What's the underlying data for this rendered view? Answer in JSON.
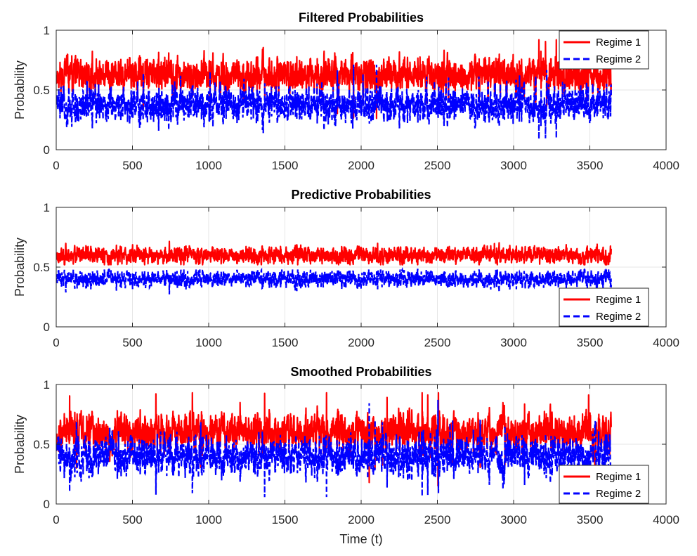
{
  "chart_data": [
    {
      "type": "line",
      "title": "Filtered Probabilities",
      "xlabel": "",
      "ylabel": "Probability",
      "xlim": [
        0,
        4000
      ],
      "ylim": [
        0,
        1
      ],
      "xticks": [
        0,
        500,
        1000,
        1500,
        2000,
        2500,
        3000,
        3500,
        4000
      ],
      "xtick_labels": [
        "0",
        "500",
        "1000",
        "1500",
        "2000",
        "2500",
        "3000",
        "3500",
        "4000"
      ],
      "yticks": [
        0,
        0.5,
        1
      ],
      "ytick_labels": [
        "0",
        "0.5",
        "1"
      ],
      "grid": true,
      "legend": "top-right",
      "n_points": 3640,
      "series": [
        {
          "name": "Regime 1",
          "color": "#ff0000",
          "style": "solid",
          "mean": 0.62,
          "range": [
            0.2,
            0.92
          ]
        },
        {
          "name": "Regime 2",
          "color": "#0000ff",
          "style": "dashed",
          "mean": 0.38,
          "range": [
            0.08,
            0.8
          ]
        }
      ]
    },
    {
      "type": "line",
      "title": "Predictive Probabilities",
      "xlabel": "",
      "ylabel": "Probability",
      "xlim": [
        0,
        4000
      ],
      "ylim": [
        0,
        1
      ],
      "xticks": [
        0,
        500,
        1000,
        1500,
        2000,
        2500,
        3000,
        3500,
        4000
      ],
      "xtick_labels": [
        "0",
        "500",
        "1000",
        "1500",
        "2000",
        "2500",
        "3000",
        "3500",
        "4000"
      ],
      "yticks": [
        0,
        0.5,
        1
      ],
      "ytick_labels": [
        "0",
        "0.5",
        "1"
      ],
      "grid": true,
      "legend": "bottom-right",
      "n_points": 3640,
      "series": [
        {
          "name": "Regime 1",
          "color": "#ff0000",
          "style": "solid",
          "mean": 0.6,
          "range": [
            0.52,
            0.76
          ]
        },
        {
          "name": "Regime 2",
          "color": "#0000ff",
          "style": "dashed",
          "mean": 0.4,
          "range": [
            0.26,
            0.48
          ]
        }
      ]
    },
    {
      "type": "line",
      "title": "Smoothed Probabilities",
      "xlabel": "Time (t)",
      "ylabel": "Probability",
      "xlim": [
        0,
        4000
      ],
      "ylim": [
        0,
        1
      ],
      "xticks": [
        0,
        500,
        1000,
        1500,
        2000,
        2500,
        3000,
        3500,
        4000
      ],
      "xtick_labels": [
        "0",
        "500",
        "1000",
        "1500",
        "2000",
        "2500",
        "3000",
        "3500",
        "4000"
      ],
      "yticks": [
        0,
        0.5,
        1
      ],
      "ytick_labels": [
        "0",
        "0.5",
        "1"
      ],
      "grid": true,
      "legend": "bottom-right",
      "n_points": 3640,
      "series": [
        {
          "name": "Regime 1",
          "color": "#ff0000",
          "style": "solid",
          "mean": 0.6,
          "range": [
            0.1,
            0.93
          ]
        },
        {
          "name": "Regime 2",
          "color": "#0000ff",
          "style": "dashed",
          "mean": 0.4,
          "range": [
            0.05,
            0.9
          ]
        }
      ]
    }
  ]
}
